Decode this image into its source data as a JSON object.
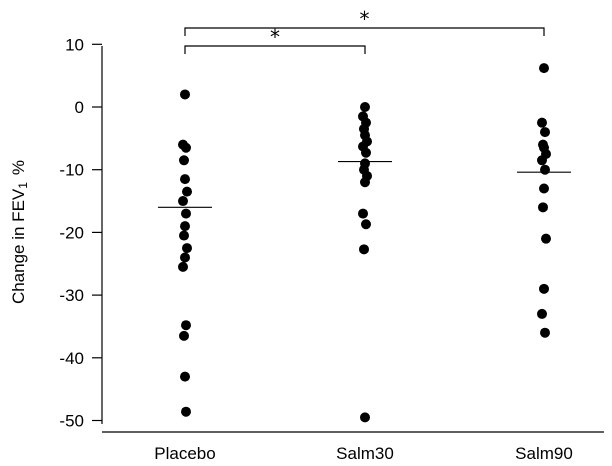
{
  "chart_data": {
    "type": "scatter",
    "title": "",
    "xlabel": "",
    "ylabel": "Change in FEV",
    "ylabel_sub": "1",
    "ylabel_unit": "%",
    "ylim": [
      -51,
      10
    ],
    "yticks": [
      10,
      0,
      -10,
      -20,
      -30,
      -40,
      -50
    ],
    "ytick_labels": [
      "10",
      "0",
      "-10",
      "-20",
      "-30",
      "-40",
      "-50"
    ],
    "categories": [
      "Placebo",
      "Salm30",
      "Salm90"
    ],
    "series": [
      {
        "values": [
          2,
          -6,
          -6.5,
          -8.5,
          -11.5,
          -13.5,
          -15,
          -17,
          -19,
          -20.5,
          -22.5,
          -24,
          -25.5,
          -34.8,
          -36.5,
          -43,
          -48.6
        ],
        "mean": -16
      },
      {
        "values": [
          0,
          -1.5,
          -2.5,
          -3.5,
          -4.5,
          -5.5,
          -6.3,
          -7.3,
          -9,
          -10,
          -11,
          -12,
          -17,
          -18.7,
          -22.7,
          -49.5
        ],
        "mean": -8.7
      },
      {
        "values": [
          6.2,
          -2.5,
          -4,
          -6,
          -6.5,
          -7.5,
          -8.5,
          -10,
          -13,
          -16,
          -21,
          -29,
          -33,
          -36
        ],
        "mean": -10.4
      }
    ],
    "significance": [
      {
        "from": "Placebo",
        "to": "Salm30",
        "label": "*"
      },
      {
        "from": "Placebo",
        "to": "Salm90",
        "label": "*"
      }
    ]
  }
}
